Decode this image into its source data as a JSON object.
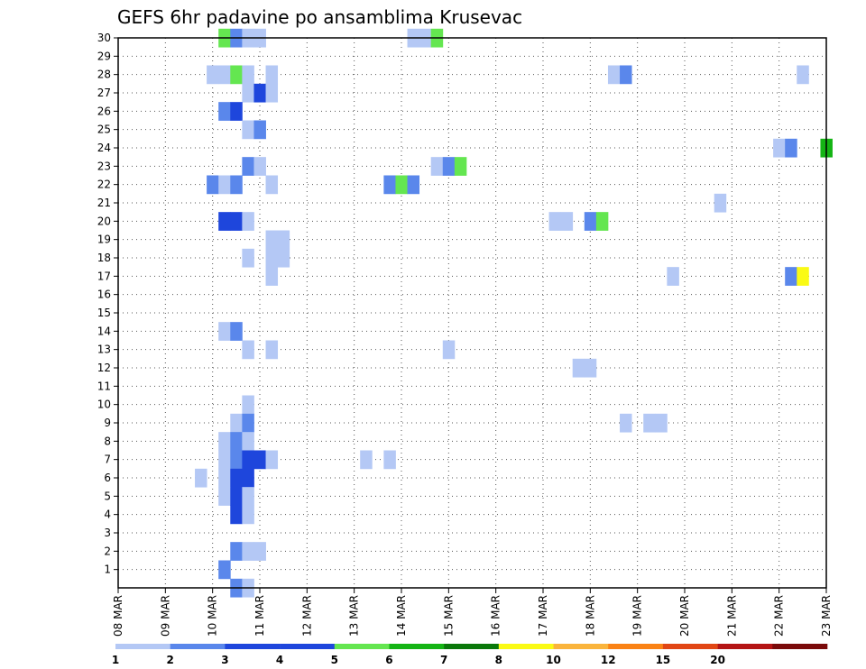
{
  "chart_data": {
    "type": "heatmap",
    "title": "GEFS 6hr padavine po ansamblima Krusevac",
    "xlabel": "",
    "ylabel": "",
    "x_tick_labels": [
      "08 MAR",
      "09 MAR",
      "10 MAR",
      "11 MAR",
      "12 MAR",
      "13 MAR",
      "14 MAR",
      "15 MAR",
      "16 MAR",
      "17 MAR",
      "18 MAR",
      "19 MAR",
      "20 MAR",
      "21 MAR",
      "22 MAR",
      "23 MAR"
    ],
    "y_tick_labels": [
      "1",
      "2",
      "3",
      "4",
      "5",
      "6",
      "7",
      "8",
      "9",
      "10",
      "11",
      "12",
      "13",
      "14",
      "15",
      "16",
      "17",
      "18",
      "19",
      "20",
      "21",
      "22",
      "23",
      "24",
      "25",
      "26",
      "27",
      "28",
      "29",
      "30"
    ],
    "x_unit": "6-hour step from 08 MAR 00Z (4 steps per day)",
    "y_range": [
      0,
      30
    ],
    "grid": true,
    "colorbar": {
      "thresholds": [
        1,
        2,
        3,
        4,
        5,
        6,
        7,
        8,
        10,
        12,
        15,
        20
      ],
      "labels": [
        "1",
        "2",
        "3",
        "4",
        "5",
        "6",
        "7",
        "8",
        "10",
        "12",
        "15",
        "20"
      ],
      "colors": [
        "#b4c8f5",
        "#5a87eb",
        "#1e46dc",
        "#1e46dc",
        "#64e650",
        "#14b414",
        "#0a780a",
        "#fafa14",
        "#fab43c",
        "#fa8214",
        "#e14614",
        "#b41414",
        "#7a0a0a"
      ]
    },
    "cells": [
      {
        "member": 30,
        "t": 9,
        "level": 4
      },
      {
        "member": 30,
        "t": 10,
        "level": 1
      },
      {
        "member": 30,
        "t": 11,
        "level": 0
      },
      {
        "member": 30,
        "t": 12,
        "level": 0
      },
      {
        "member": 30,
        "t": 25,
        "level": 0
      },
      {
        "member": 30,
        "t": 26,
        "level": 0
      },
      {
        "member": 30,
        "t": 27,
        "level": 4
      },
      {
        "member": 28,
        "t": 8,
        "level": 0
      },
      {
        "member": 28,
        "t": 9,
        "level": 0
      },
      {
        "member": 28,
        "t": 10,
        "level": 4
      },
      {
        "member": 28,
        "t": 11,
        "level": 0
      },
      {
        "member": 28,
        "t": 13,
        "level": 0
      },
      {
        "member": 28,
        "t": 42,
        "level": 0
      },
      {
        "member": 28,
        "t": 43,
        "level": 1
      },
      {
        "member": 28,
        "t": 58,
        "level": 0
      },
      {
        "member": 27,
        "t": 11,
        "level": 0
      },
      {
        "member": 27,
        "t": 12,
        "level": 2
      },
      {
        "member": 27,
        "t": 13,
        "level": 0
      },
      {
        "member": 26,
        "t": 9,
        "level": 1
      },
      {
        "member": 26,
        "t": 10,
        "level": 2
      },
      {
        "member": 25,
        "t": 11,
        "level": 0
      },
      {
        "member": 25,
        "t": 12,
        "level": 1
      },
      {
        "member": 24,
        "t": 56,
        "level": 0
      },
      {
        "member": 24,
        "t": 57,
        "level": 1
      },
      {
        "member": 24,
        "t": 60,
        "level": 5
      },
      {
        "member": 23,
        "t": 11,
        "level": 1
      },
      {
        "member": 23,
        "t": 12,
        "level": 0
      },
      {
        "member": 23,
        "t": 27,
        "level": 0
      },
      {
        "member": 23,
        "t": 28,
        "level": 1
      },
      {
        "member": 23,
        "t": 29,
        "level": 4
      },
      {
        "member": 22,
        "t": 8,
        "level": 1
      },
      {
        "member": 22,
        "t": 9,
        "level": 0
      },
      {
        "member": 22,
        "t": 10,
        "level": 1
      },
      {
        "member": 22,
        "t": 13,
        "level": 0
      },
      {
        "member": 22,
        "t": 23,
        "level": 1
      },
      {
        "member": 22,
        "t": 24,
        "level": 4
      },
      {
        "member": 22,
        "t": 25,
        "level": 1
      },
      {
        "member": 21,
        "t": 51,
        "level": 0
      },
      {
        "member": 20,
        "t": 9,
        "level": 2
      },
      {
        "member": 20,
        "t": 10,
        "level": 2
      },
      {
        "member": 20,
        "t": 11,
        "level": 0
      },
      {
        "member": 20,
        "t": 37,
        "level": 0
      },
      {
        "member": 20,
        "t": 38,
        "level": 0
      },
      {
        "member": 20,
        "t": 40,
        "level": 1
      },
      {
        "member": 20,
        "t": 41,
        "level": 4
      },
      {
        "member": 19,
        "t": 13,
        "level": 0
      },
      {
        "member": 19,
        "t": 14,
        "level": 0
      },
      {
        "member": 18,
        "t": 11,
        "level": 0
      },
      {
        "member": 18,
        "t": 13,
        "level": 0
      },
      {
        "member": 18,
        "t": 14,
        "level": 0
      },
      {
        "member": 17,
        "t": 13,
        "level": 0
      },
      {
        "member": 17,
        "t": 47,
        "level": 0
      },
      {
        "member": 17,
        "t": 57,
        "level": 1
      },
      {
        "member": 17,
        "t": 58,
        "level": 7
      },
      {
        "member": 14,
        "t": 9,
        "level": 0
      },
      {
        "member": 14,
        "t": 10,
        "level": 1
      },
      {
        "member": 13,
        "t": 11,
        "level": 0
      },
      {
        "member": 13,
        "t": 13,
        "level": 0
      },
      {
        "member": 13,
        "t": 28,
        "level": 0
      },
      {
        "member": 12,
        "t": 39,
        "level": 0
      },
      {
        "member": 12,
        "t": 40,
        "level": 0
      },
      {
        "member": 10,
        "t": 11,
        "level": 0
      },
      {
        "member": 9,
        "t": 10,
        "level": 0
      },
      {
        "member": 9,
        "t": 11,
        "level": 1
      },
      {
        "member": 9,
        "t": 43,
        "level": 0
      },
      {
        "member": 9,
        "t": 45,
        "level": 0
      },
      {
        "member": 9,
        "t": 46,
        "level": 0
      },
      {
        "member": 8,
        "t": 9,
        "level": 0
      },
      {
        "member": 8,
        "t": 10,
        "level": 1
      },
      {
        "member": 8,
        "t": 11,
        "level": 0
      },
      {
        "member": 7,
        "t": 9,
        "level": 0
      },
      {
        "member": 7,
        "t": 10,
        "level": 1
      },
      {
        "member": 7,
        "t": 11,
        "level": 2
      },
      {
        "member": 7,
        "t": 12,
        "level": 2
      },
      {
        "member": 7,
        "t": 13,
        "level": 0
      },
      {
        "member": 7,
        "t": 21,
        "level": 0
      },
      {
        "member": 7,
        "t": 23,
        "level": 0
      },
      {
        "member": 6,
        "t": 7,
        "level": 0
      },
      {
        "member": 6,
        "t": 9,
        "level": 0
      },
      {
        "member": 6,
        "t": 10,
        "level": 2
      },
      {
        "member": 6,
        "t": 11,
        "level": 2
      },
      {
        "member": 5,
        "t": 9,
        "level": 0
      },
      {
        "member": 5,
        "t": 10,
        "level": 2
      },
      {
        "member": 5,
        "t": 11,
        "level": 0
      },
      {
        "member": 4,
        "t": 10,
        "level": 2
      },
      {
        "member": 4,
        "t": 11,
        "level": 0
      },
      {
        "member": 2,
        "t": 10,
        "level": 1
      },
      {
        "member": 2,
        "t": 11,
        "level": 0
      },
      {
        "member": 2,
        "t": 12,
        "level": 0
      },
      {
        "member": 1,
        "t": 9,
        "level": 1
      },
      {
        "member": 0,
        "t": 10,
        "level": 1
      },
      {
        "member": 0,
        "t": 11,
        "level": 0
      }
    ]
  }
}
